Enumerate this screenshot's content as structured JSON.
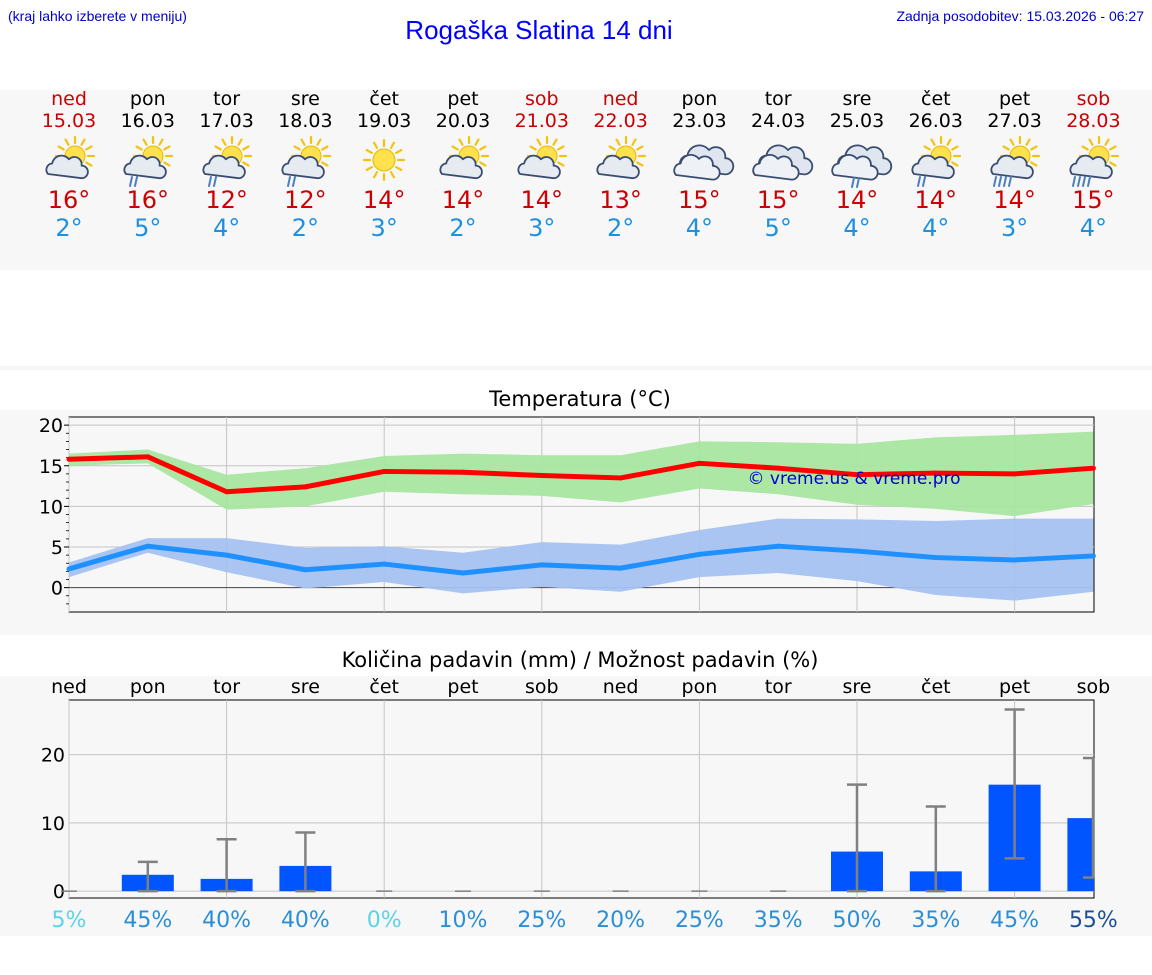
{
  "header": {
    "hint": "(kraj lahko izberete v meniju)",
    "title": "Rogaška Slatina 14 dni",
    "updated": "Zadnja posodobitev: 15.03.2026 - 06:27"
  },
  "days": [
    {
      "name": "ned",
      "date": "15.03",
      "weekend": true,
      "icon": "sun-cloud-icon",
      "max": "16°",
      "min": "2°"
    },
    {
      "name": "pon",
      "date": "16.03",
      "weekend": false,
      "icon": "sun-cloud-rain-icon",
      "max": "16°",
      "min": "5°"
    },
    {
      "name": "tor",
      "date": "17.03",
      "weekend": false,
      "icon": "sun-cloud-rain-icon",
      "max": "12°",
      "min": "4°"
    },
    {
      "name": "sre",
      "date": "18.03",
      "weekend": false,
      "icon": "sun-cloud-rain-icon",
      "max": "12°",
      "min": "2°"
    },
    {
      "name": "čet",
      "date": "19.03",
      "weekend": false,
      "icon": "sun-icon",
      "max": "14°",
      "min": "3°"
    },
    {
      "name": "pet",
      "date": "20.03",
      "weekend": false,
      "icon": "sun-cloud-icon",
      "max": "14°",
      "min": "2°"
    },
    {
      "name": "sob",
      "date": "21.03",
      "weekend": true,
      "icon": "sun-cloud-icon",
      "max": "14°",
      "min": "3°"
    },
    {
      "name": "ned",
      "date": "22.03",
      "weekend": true,
      "icon": "sun-cloud-icon",
      "max": "13°",
      "min": "2°"
    },
    {
      "name": "pon",
      "date": "23.03",
      "weekend": false,
      "icon": "cloud-icon",
      "max": "15°",
      "min": "4°"
    },
    {
      "name": "tor",
      "date": "24.03",
      "weekend": false,
      "icon": "cloud-icon",
      "max": "15°",
      "min": "5°"
    },
    {
      "name": "sre",
      "date": "25.03",
      "weekend": false,
      "icon": "cloud-rain-icon",
      "max": "14°",
      "min": "4°"
    },
    {
      "name": "čet",
      "date": "26.03",
      "weekend": false,
      "icon": "sun-cloud-rain-icon",
      "max": "14°",
      "min": "4°"
    },
    {
      "name": "pet",
      "date": "27.03",
      "weekend": false,
      "icon": "sun-cloud-heavy-rain-icon",
      "max": "14°",
      "min": "3°"
    },
    {
      "name": "sob",
      "date": "28.03",
      "weekend": true,
      "icon": "sun-cloud-heavy-rain-icon",
      "max": "15°",
      "min": "4°"
    }
  ],
  "colors": {
    "max": "#ff0000",
    "max_band": "#a8e6a0",
    "min": "#1e90ff",
    "min_band": "#a6c2f2",
    "bar": "#0055ff",
    "error": "#808080",
    "watermark": "#0000cc",
    "weekend": "#cc0000"
  },
  "chart_data": [
    {
      "type": "line",
      "title": "Temperatura (°C)",
      "watermark": "© vreme.us & vreme.pro",
      "x": [
        0,
        1,
        2,
        3,
        4,
        5,
        6,
        7,
        8,
        9,
        10,
        11,
        12,
        13
      ],
      "ylim": [
        -3,
        21
      ],
      "yticks": [
        0,
        5,
        10,
        15,
        20
      ],
      "series": [
        {
          "name": "max",
          "values": [
            15.8,
            16.1,
            11.8,
            12.4,
            14.3,
            14.2,
            13.8,
            13.5,
            15.3,
            14.7,
            13.9,
            14.1,
            14.0,
            14.7
          ],
          "band_low": [
            15.0,
            15.3,
            9.6,
            10.0,
            11.8,
            11.5,
            11.3,
            10.5,
            12.2,
            11.5,
            10.2,
            9.7,
            8.8,
            10.3
          ],
          "band_high": [
            16.5,
            17.0,
            13.9,
            14.7,
            16.2,
            16.5,
            16.3,
            16.3,
            18.0,
            17.9,
            17.7,
            18.5,
            18.8,
            19.2
          ]
        },
        {
          "name": "min",
          "values": [
            2.3,
            5.1,
            4.0,
            2.2,
            2.9,
            1.8,
            2.8,
            2.4,
            4.1,
            5.1,
            4.5,
            3.7,
            3.4,
            3.9
          ],
          "band_low": [
            1.3,
            4.3,
            1.9,
            -0.1,
            0.7,
            -0.7,
            0.1,
            -0.5,
            1.3,
            1.8,
            0.8,
            -0.9,
            -1.6,
            -0.5
          ],
          "band_high": [
            3.1,
            6.1,
            6.1,
            4.9,
            5.1,
            4.3,
            5.6,
            5.3,
            7.1,
            8.5,
            8.4,
            8.2,
            8.5,
            8.5
          ]
        }
      ]
    },
    {
      "type": "bar",
      "title": "Količina padavin (mm) / Možnost padavin (%)",
      "categories": [
        "ned",
        "pon",
        "tor",
        "sre",
        "čet",
        "pet",
        "sob",
        "ned",
        "pon",
        "tor",
        "sre",
        "čet",
        "pet",
        "sob"
      ],
      "values": [
        0,
        2.4,
        1.8,
        3.7,
        0,
        0,
        0,
        0,
        0,
        0,
        5.8,
        2.9,
        15.6,
        10.7
      ],
      "err_low": [
        0,
        0,
        0,
        0,
        0,
        0,
        0,
        0,
        0,
        0,
        0,
        0,
        4.8,
        2.0
      ],
      "err_high": [
        0,
        4.3,
        7.6,
        8.6,
        0,
        0,
        0,
        0,
        0,
        0,
        15.6,
        12.4,
        26.6,
        19.5
      ],
      "ylim": [
        -1,
        28
      ],
      "yticks": [
        0,
        10,
        20
      ],
      "probability": [
        "5%",
        "45%",
        "40%",
        "40%",
        "0%",
        "10%",
        "25%",
        "20%",
        "25%",
        "35%",
        "50%",
        "35%",
        "45%",
        "55%"
      ],
      "probability_colors": [
        "#5bd3e8",
        "#2a8fd6",
        "#2a8fd6",
        "#2a8fd6",
        "#5bd3e8",
        "#2a8fd6",
        "#2a8fd6",
        "#2a8fd6",
        "#2a8fd6",
        "#2a8fd6",
        "#2a8fd6",
        "#2a8fd6",
        "#2a8fd6",
        "#1b4f96"
      ]
    }
  ]
}
